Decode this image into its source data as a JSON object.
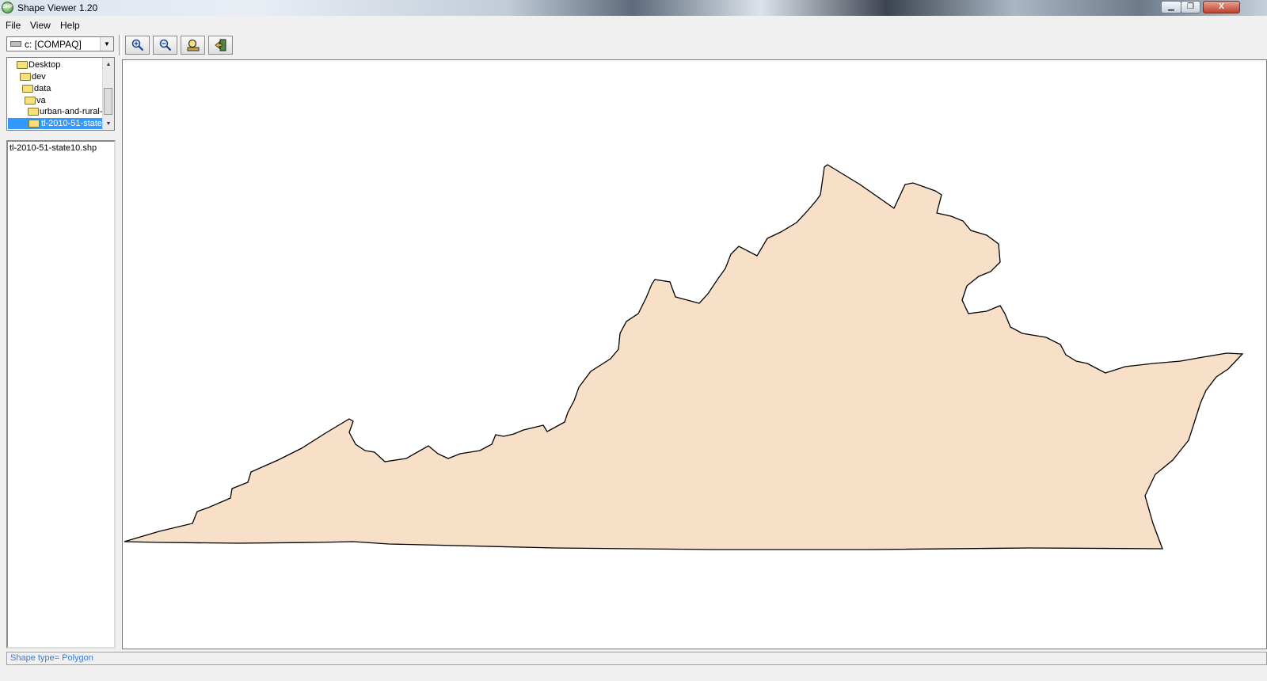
{
  "window": {
    "title": "Shape Viewer 1.20",
    "icon_label": "SHP",
    "min_glyph": "▁",
    "max_glyph": "❐",
    "close_glyph": "X"
  },
  "menu": {
    "items": [
      "File",
      "View",
      "Help"
    ]
  },
  "drive": {
    "label": "c: [COMPAQ]"
  },
  "toolbar": {
    "buttons": [
      "zoom-in-icon",
      "zoom-out-icon",
      "pan-icon",
      "exit-icon"
    ]
  },
  "folder_tree": {
    "items": [
      {
        "label": "Desktop"
      },
      {
        "label": "dev"
      },
      {
        "label": "data"
      },
      {
        "label": "va"
      },
      {
        "label": "urban-and-rural-c"
      },
      {
        "label": "tl-2010-51-state"
      }
    ],
    "selected": "tl-2010-51-state"
  },
  "file_list": {
    "items": [
      "tl-2010-51-state10.shp"
    ]
  },
  "map": {
    "fill_color": "#f8e0c8",
    "stroke_color": "#000000"
  },
  "status": {
    "text": "Shape type= Polygon"
  }
}
